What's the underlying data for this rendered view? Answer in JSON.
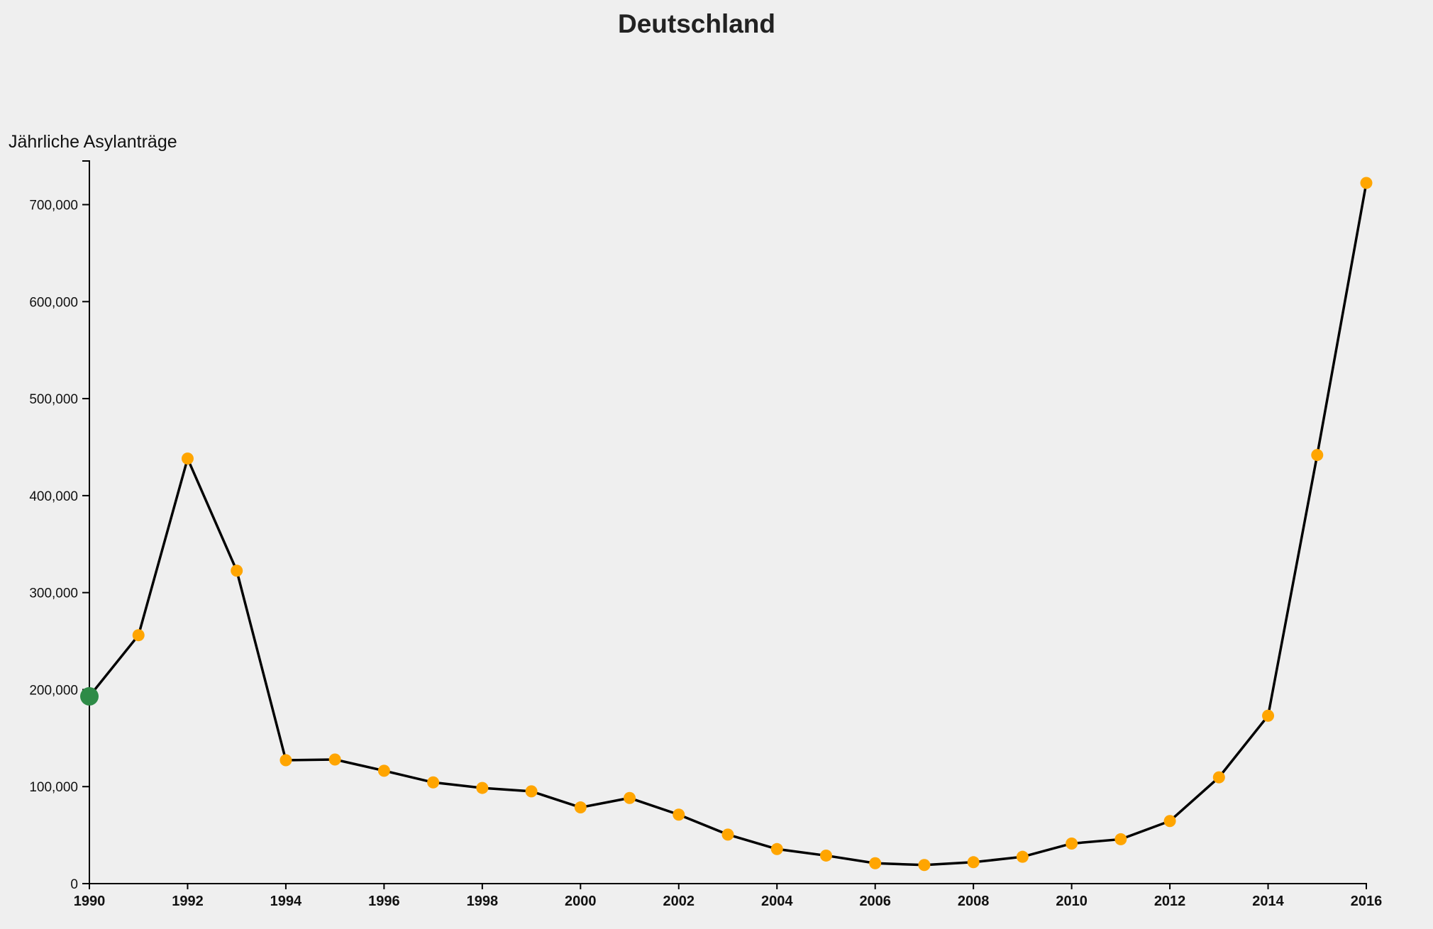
{
  "chart_data": {
    "type": "line",
    "title": "Deutschland",
    "xlabel": "",
    "ylabel": "Jährliche Asylanträge",
    "x": [
      1990,
      1991,
      1992,
      1993,
      1994,
      1995,
      1996,
      1997,
      1998,
      1999,
      2000,
      2001,
      2002,
      2003,
      2004,
      2005,
      2006,
      2007,
      2008,
      2009,
      2010,
      2011,
      2012,
      2013,
      2014,
      2015,
      2016
    ],
    "series": [
      {
        "values": [
          193063,
          256112,
          438191,
          322599,
          127210,
          127937,
          116367,
          104353,
          98644,
          95113,
          78564,
          88287,
          71127,
          50563,
          35607,
          28914,
          21029,
          19164,
          22085,
          27649,
          41332,
          45741,
          64539,
          109580,
          173072,
          441899,
          722370
        ]
      }
    ],
    "xlim": [
      1990,
      2016
    ],
    "ylim": [
      0,
      745000
    ],
    "x_ticks": [
      "1990",
      "1992",
      "1994",
      "1996",
      "1998",
      "2000",
      "2002",
      "2004",
      "2006",
      "2008",
      "2010",
      "2012",
      "2014",
      "2016"
    ],
    "y_ticks": [
      "0",
      "100,000",
      "200,000",
      "300,000",
      "400,000",
      "500,000",
      "600,000",
      "700,000"
    ],
    "highlight_index": 0,
    "colors": {
      "line": "#000000",
      "point": "#ffa500",
      "highlight": "#2e8b47",
      "background": "#efefef"
    },
    "grid": false,
    "legend": "none"
  }
}
